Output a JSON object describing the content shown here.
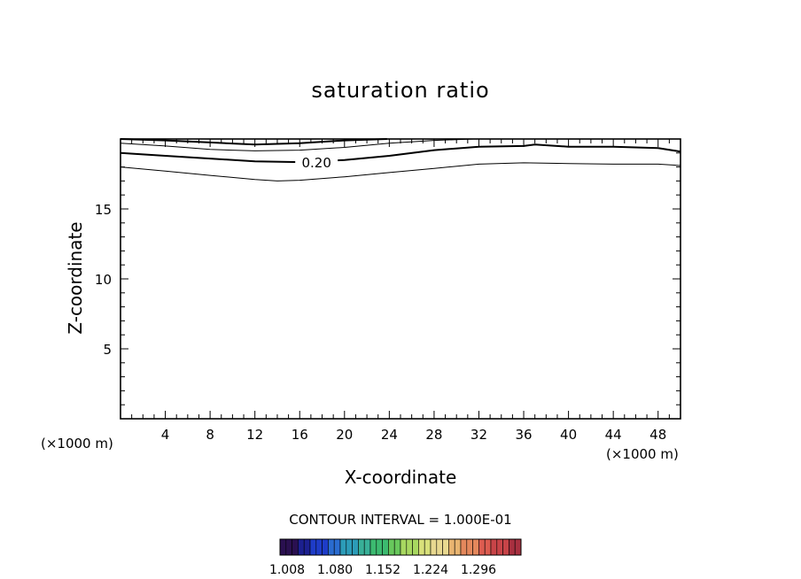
{
  "chart_data": {
    "type": "contour",
    "title": "saturation ratio",
    "xlabel": "X-coordinate",
    "ylabel": "Z-coordinate",
    "x_unit": "(×1000 m)",
    "y_unit": "(×1000 m)",
    "xlim": [
      0,
      50
    ],
    "ylim": [
      0,
      20
    ],
    "x_ticks": [
      4,
      8,
      12,
      16,
      20,
      24,
      28,
      32,
      36,
      40,
      44,
      48
    ],
    "y_ticks": [
      5,
      10,
      15
    ],
    "contour_interval_text": "CONTOUR INTERVAL = 1.000E-01",
    "contour_label": "0.20",
    "contours": [
      {
        "level": "upper",
        "bold": true,
        "x": [
          0,
          4,
          8,
          12,
          16,
          20,
          23.8
        ],
        "y": [
          20.0,
          19.9,
          19.75,
          19.6,
          19.7,
          19.9,
          20.0
        ]
      },
      {
        "level": "middle",
        "bold": false,
        "x": [
          0,
          4,
          8,
          12,
          16,
          20,
          24,
          28,
          31.5
        ],
        "y": [
          19.7,
          19.5,
          19.25,
          19.15,
          19.2,
          19.4,
          19.7,
          19.9,
          20.0
        ]
      },
      {
        "level": "0.20",
        "bold": true,
        "x": [
          0,
          4,
          8,
          12,
          16,
          20,
          24,
          28,
          32,
          36,
          37,
          40,
          44,
          48,
          50
        ],
        "y": [
          19.0,
          18.8,
          18.6,
          18.4,
          18.35,
          18.5,
          18.8,
          19.2,
          19.45,
          19.5,
          19.6,
          19.45,
          19.45,
          19.35,
          19.1
        ]
      },
      {
        "level": "lower",
        "bold": false,
        "x": [
          0,
          4,
          8,
          12,
          14,
          16,
          20,
          24,
          28,
          32,
          36,
          40,
          44,
          48,
          50
        ],
        "y": [
          18.0,
          17.7,
          17.4,
          17.1,
          17.0,
          17.05,
          17.3,
          17.6,
          17.9,
          18.2,
          18.3,
          18.25,
          18.2,
          18.2,
          18.1
        ]
      }
    ],
    "colorbar": {
      "tick_labels": [
        "1.008",
        "1.080",
        "1.152",
        "1.224",
        "1.296"
      ],
      "colors": [
        "#2a1050",
        "#1c2090",
        "#1e3cc8",
        "#2a6cd0",
        "#2c9cb8",
        "#38b098",
        "#3cba70",
        "#68c85c",
        "#a8d860",
        "#d8e07a",
        "#e8d890",
        "#e8b470",
        "#e4885c",
        "#dc5c50",
        "#c84448",
        "#a83040"
      ]
    }
  }
}
